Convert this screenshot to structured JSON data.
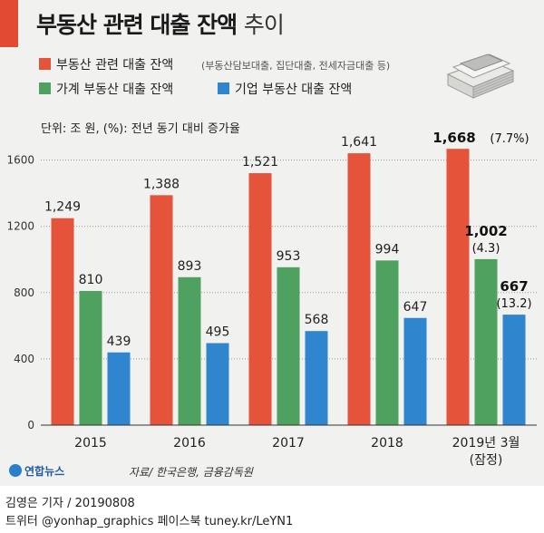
{
  "title": {
    "bold": "부동산 관련 대출 잔액",
    "light": "추이"
  },
  "legend": {
    "main_label": "부동산 관련 대출 잔액",
    "main_note": "(부동산담보대출, 집단대출, 전세자금대출 등)",
    "household_label": "가계 부동산 대출 잔액",
    "corporate_label": "기업 부동산 대출 잔액"
  },
  "unit": "단위: 조 원, (%): 전년 동기 대비 증가율",
  "colors": {
    "total": "#e5533b",
    "household": "#4ea15e",
    "corporate": "#2f86cf",
    "background": "#f1f1ef"
  },
  "chart_data": {
    "type": "bar",
    "categories": [
      "2015",
      "2016",
      "2017",
      "2018",
      "2019년 3월\n(잠정)"
    ],
    "series": [
      {
        "name": "부동산 관련 대출 잔액",
        "values": [
          1249,
          1388,
          1521,
          1641,
          1668
        ]
      },
      {
        "name": "가계 부동산 대출 잔액",
        "values": [
          810,
          893,
          953,
          994,
          1002
        ]
      },
      {
        "name": "기업 부동산 대출 잔액",
        "values": [
          439,
          495,
          568,
          647,
          667
        ]
      }
    ],
    "value_labels": [
      [
        "1,249",
        "1,388",
        "1,521",
        "1,641",
        "1,668"
      ],
      [
        "810",
        "893",
        "953",
        "994",
        "1,002"
      ],
      [
        "439",
        "495",
        "568",
        "647",
        "667"
      ]
    ],
    "growth_labels": [
      "(7.7%)",
      "(4.3)",
      "(13.2)"
    ],
    "ylim": [
      0,
      1700
    ],
    "yticks": [
      0,
      400,
      800,
      1200,
      1600
    ],
    "xlabel": "",
    "ylabel": "조 원",
    "legend_position": "top-left"
  },
  "source": "자료/ 한국은행, 금융감독원",
  "logo": "연합뉴스",
  "footer": {
    "byline": "김영은 기자 / 20190808",
    "social": "트위터 @yonhap_graphics  페이스북 tuney.kr/LeYN1"
  }
}
